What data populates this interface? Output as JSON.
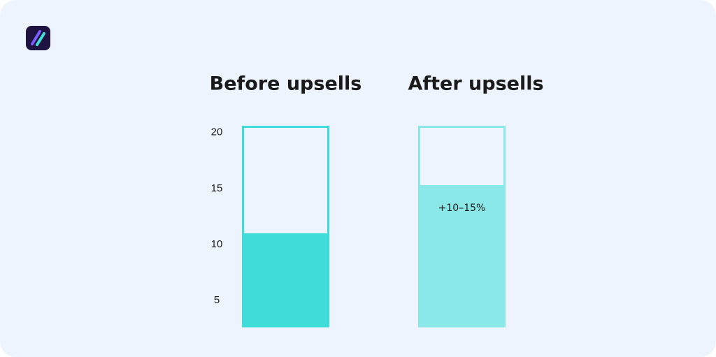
{
  "chart_data": {
    "type": "bar",
    "categories": [
      "Before upsells",
      "After upsells"
    ],
    "values": [
      11,
      15.3
    ],
    "colors": [
      "#40dcd9",
      "#8ae9e8"
    ],
    "ylim": [
      2.7,
      20.6
    ],
    "yticks": [
      5,
      10,
      15,
      20
    ],
    "annotation": {
      "text": "+10–15%",
      "category": 1
    }
  }
}
